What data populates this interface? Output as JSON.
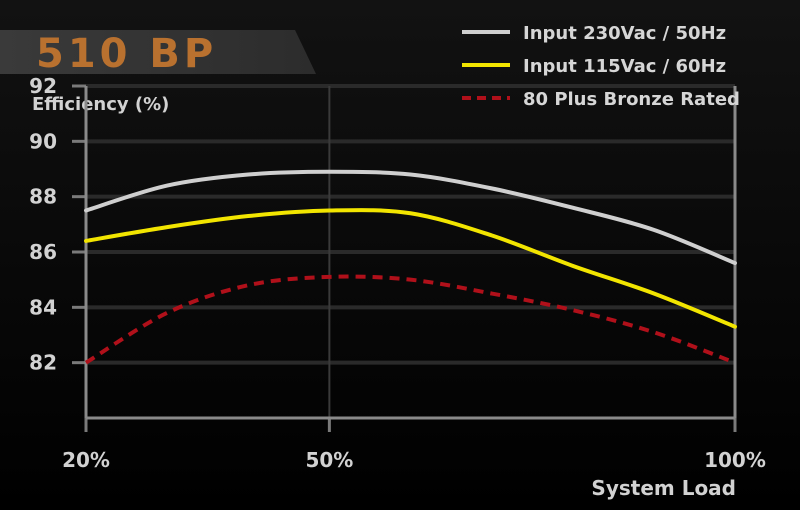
{
  "chart_data": {
    "type": "line",
    "title": "510 BP",
    "ylabel": "Efficiency (%)",
    "xlabel": "System Load",
    "x_categories": [
      "20%",
      "50%",
      "100%"
    ],
    "x_values": [
      20,
      50,
      100
    ],
    "ylim": [
      80,
      92
    ],
    "y_ticks": [
      92,
      90,
      88,
      86,
      84,
      82
    ],
    "grid": true,
    "legend_position": "top-right",
    "series": [
      {
        "name": "Input 230Vac / 50Hz",
        "color": "#cfcfcf",
        "style": "solid",
        "x": [
          20,
          30,
          40,
          50,
          60,
          70,
          80,
          90,
          100
        ],
        "y": [
          87.5,
          88.4,
          88.8,
          88.9,
          88.8,
          88.3,
          87.6,
          86.8,
          85.6
        ]
      },
      {
        "name": "Input 115Vac / 60Hz",
        "color": "#f2e500",
        "style": "solid",
        "x": [
          20,
          30,
          40,
          50,
          60,
          70,
          80,
          90,
          100
        ],
        "y": [
          86.4,
          86.9,
          87.3,
          87.5,
          87.4,
          86.6,
          85.5,
          84.5,
          83.3
        ]
      },
      {
        "name": "80 Plus Bronze Rated",
        "color": "#b0101a",
        "style": "dashed",
        "x": [
          20,
          30,
          40,
          50,
          60,
          70,
          80,
          90,
          100
        ],
        "y": [
          82.0,
          83.8,
          84.8,
          85.1,
          85.0,
          84.5,
          83.9,
          83.1,
          82.0
        ]
      }
    ]
  }
}
